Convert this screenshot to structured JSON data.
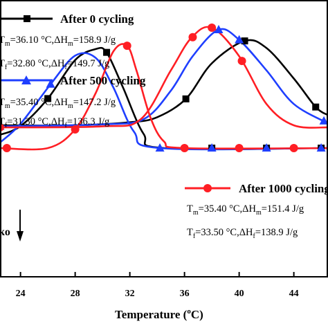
{
  "chart_data": {
    "type": "line",
    "xlabel_main": "Temperature (",
    "xlabel_sup": "o",
    "xlabel_end": "C)",
    "x_ticks": [
      "24",
      "28",
      "32",
      "36",
      "40",
      "44"
    ],
    "xlim": [
      22.5,
      46.5
    ],
    "side_text": "ko",
    "series": [
      {
        "name": "After 0 cycling",
        "color": "#000000",
        "marker": "square",
        "Tm": "=36.10 °C,ΔH",
        "Hm": "=158.9 J/g",
        "Tf": "=32.80 °C,ΔH",
        "Hf": "=149.7 J/g"
      },
      {
        "name": "After 500 cycling",
        "color": "#1f3fff",
        "marker": "triangle",
        "Tm": "=35.40 °C,ΔH",
        "Hm": "=147.2 J/g",
        "Tf": "=31.30 °C,ΔH",
        "Hf": "=136.3 J/g"
      },
      {
        "name": "After 1000 cycling",
        "color": "#ff1e24",
        "marker": "circle",
        "Tm": "=35.40 °C,ΔH",
        "Hm": "=151.4 J/g",
        "Tf": "=33.50 °C,ΔH",
        "Hf": "=138.9 J/g"
      }
    ],
    "heating_curves": {
      "after_0": [
        [
          22.5,
          0.04
        ],
        [
          28,
          0.04
        ],
        [
          32,
          0.07
        ],
        [
          34,
          0.12
        ],
        [
          36.1,
          0.3
        ],
        [
          38,
          0.65
        ],
        [
          40.4,
          0.87
        ],
        [
          42,
          0.8
        ],
        [
          44,
          0.5
        ],
        [
          45.6,
          0.22
        ],
        [
          46.5,
          0.14
        ]
      ],
      "after_500": [
        [
          22.5,
          0.03
        ],
        [
          30,
          0.05
        ],
        [
          33,
          0.1
        ],
        [
          35,
          0.38
        ],
        [
          36.6,
          0.72
        ],
        [
          38.5,
          0.98
        ],
        [
          40,
          0.88
        ],
        [
          42,
          0.58
        ],
        [
          44,
          0.25
        ],
        [
          46.5,
          0.06
        ]
      ],
      "after_1000": [
        [
          22.5,
          0.02
        ],
        [
          30,
          0.03
        ],
        [
          32.8,
          0.1
        ],
        [
          35,
          0.58
        ],
        [
          36.5,
          0.9
        ],
        [
          38,
          1.0
        ],
        [
          40,
          0.72
        ],
        [
          42,
          0.25
        ],
        [
          44,
          0.04
        ],
        [
          46.5,
          0.02
        ]
      ]
    },
    "cooling_curves": {
      "after_0": [
        [
          22.5,
          -0.12
        ],
        [
          24,
          -0.2
        ],
        [
          26,
          -0.45
        ],
        [
          28,
          -0.8
        ],
        [
          29.5,
          -0.9
        ],
        [
          30.3,
          -0.87
        ],
        [
          31.5,
          -0.55
        ],
        [
          33,
          -0.13
        ],
        [
          34.5,
          0.0
        ],
        [
          46.5,
          0.0
        ]
      ],
      "after_500": [
        [
          22.5,
          -0.05
        ],
        [
          24,
          -0.22
        ],
        [
          26.2,
          -0.58
        ],
        [
          28,
          -0.84
        ],
        [
          29.5,
          -0.82
        ],
        [
          30.8,
          -0.55
        ],
        [
          32.3,
          -0.15
        ],
        [
          34.2,
          0.0
        ],
        [
          46.5,
          0.0
        ]
      ],
      "after_1000": [
        [
          22.5,
          0.0
        ],
        [
          26,
          0.0
        ],
        [
          28,
          -0.17
        ],
        [
          29.5,
          -0.5
        ],
        [
          30.8,
          -0.88
        ],
        [
          31.8,
          -0.93
        ],
        [
          32.5,
          -0.7
        ],
        [
          33.5,
          -0.28
        ],
        [
          34.5,
          -0.06
        ],
        [
          36,
          0.0
        ],
        [
          46.5,
          0.0
        ]
      ]
    }
  }
}
